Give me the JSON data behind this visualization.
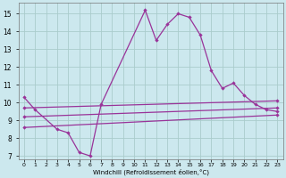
{
  "bg_color": "#cce8ee",
  "grid_color": "#aacccc",
  "line_color": "#993399",
  "xlabel": "Windchill (Refroidissement éolien,°C)",
  "xlim": [
    -0.5,
    23.5
  ],
  "ylim": [
    6.8,
    15.6
  ],
  "yticks": [
    7,
    8,
    9,
    10,
    11,
    12,
    13,
    14,
    15
  ],
  "xtick_labels": [
    "0",
    "1",
    "2",
    "3",
    "4",
    "5",
    "6",
    "7",
    "8",
    "9",
    "10",
    "11",
    "12",
    "13",
    "14",
    "15",
    "16",
    "17",
    "18",
    "19",
    "20",
    "21",
    "22",
    "23"
  ],
  "line1_x": [
    0,
    1,
    3,
    4,
    5,
    6,
    7,
    11,
    12,
    13,
    14,
    15,
    16,
    17,
    18,
    19,
    20,
    21,
    22,
    23
  ],
  "line1_y": [
    10.3,
    9.6,
    8.5,
    8.3,
    7.2,
    7.0,
    9.9,
    15.2,
    13.5,
    14.4,
    15.0,
    14.8,
    13.8,
    11.8,
    10.8,
    11.1,
    10.4,
    9.9,
    9.6,
    9.5
  ],
  "line2_x": [
    0,
    23
  ],
  "line2_y": [
    9.7,
    10.1
  ],
  "line3_x": [
    0,
    23
  ],
  "line3_y": [
    9.2,
    9.7
  ],
  "line4_x": [
    0,
    23
  ],
  "line4_y": [
    8.6,
    9.3
  ]
}
